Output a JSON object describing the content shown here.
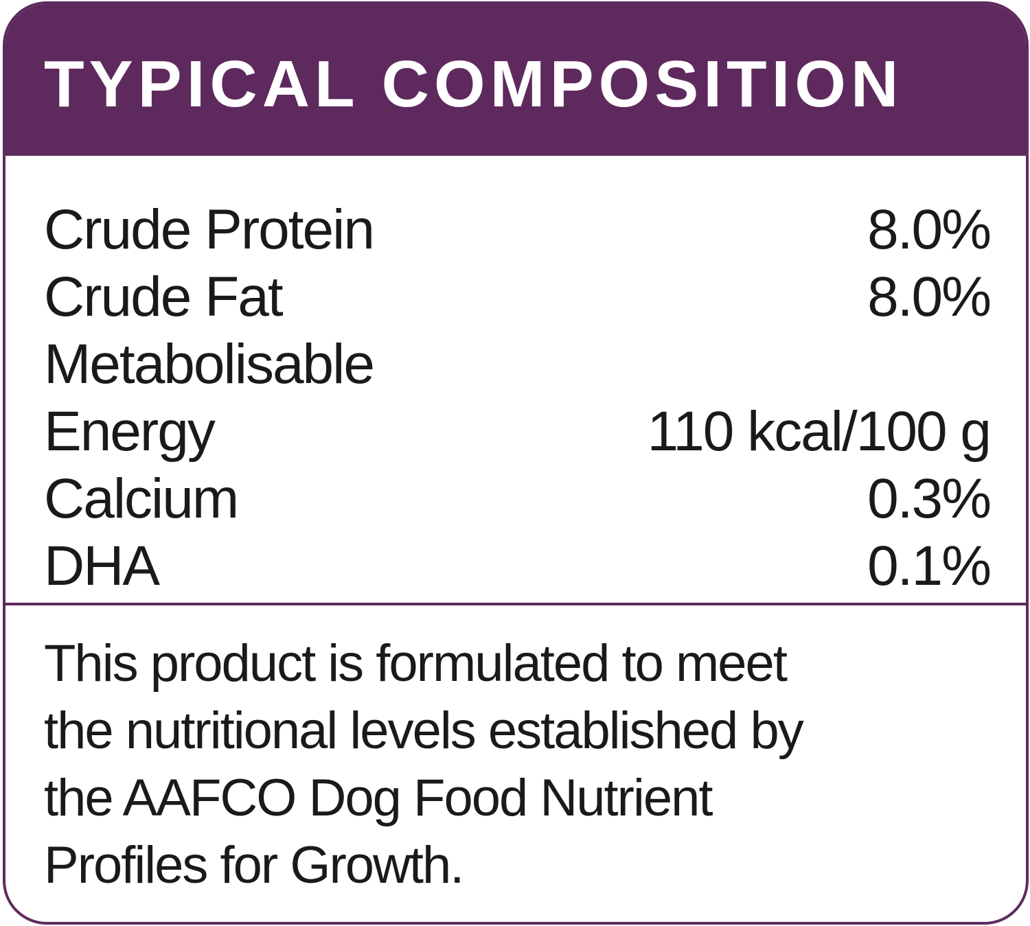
{
  "header": {
    "title": "TYPICAL COMPOSITION"
  },
  "table": {
    "rows": [
      {
        "label": [
          "Crude Protein"
        ],
        "value": "8.0%"
      },
      {
        "label": [
          "Crude Fat"
        ],
        "value": "8.0%"
      },
      {
        "label": [
          "Metabolisable",
          "Energy"
        ],
        "value": "110 kcal/100 g"
      },
      {
        "label": [
          "Calcium"
        ],
        "value": "0.3%"
      },
      {
        "label": [
          "DHA"
        ],
        "value": "0.1%"
      }
    ]
  },
  "statement": {
    "lines": [
      "This product is formulated to meet",
      "the nutritional levels established by",
      "the AAFCO Dog Food Nutrient",
      "Profiles for Growth."
    ]
  }
}
